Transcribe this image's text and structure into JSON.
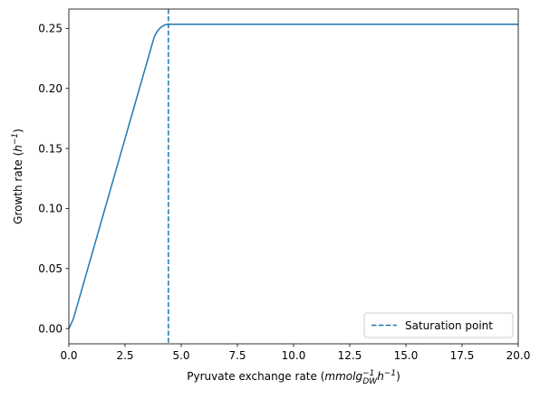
{
  "chart_data": {
    "type": "line",
    "title": "",
    "xlabel": "Pyruvate exchange rate ($mmol g_{DW}^{-1} h^{-1}$)",
    "ylabel": "Growth rate ($h^{-1}$)",
    "xlim": [
      0,
      20
    ],
    "ylim": [
      -0.0127,
      0.2661
    ],
    "x_ticks": [
      0,
      2.5,
      5,
      7.5,
      10,
      12.5,
      15,
      17.5,
      20
    ],
    "x_tick_labels": [
      "0.0",
      "2.5",
      "5.0",
      "7.5",
      "10.0",
      "12.5",
      "15.0",
      "17.5",
      "20.0"
    ],
    "y_ticks": [
      0,
      0.05,
      0.1,
      0.15,
      0.2,
      0.25
    ],
    "y_tick_labels": [
      "0.00",
      "0.05",
      "0.10",
      "0.15",
      "0.20",
      "0.25"
    ],
    "grid": false,
    "legend_position": "lower-right",
    "series": [
      {
        "color": "#1f77b4",
        "style": "solid",
        "x": [
          0,
          0.2,
          3.8,
          3.95,
          4.1,
          4.25,
          4.4,
          20
        ],
        "y": [
          0,
          0.008,
          0.243,
          0.248,
          0.251,
          0.2527,
          0.2534,
          0.2534
        ]
      }
    ],
    "vlines": [
      {
        "name": "Saturation point",
        "x": 4.43,
        "color": "#1f77b4",
        "style": "dashed"
      }
    ]
  }
}
